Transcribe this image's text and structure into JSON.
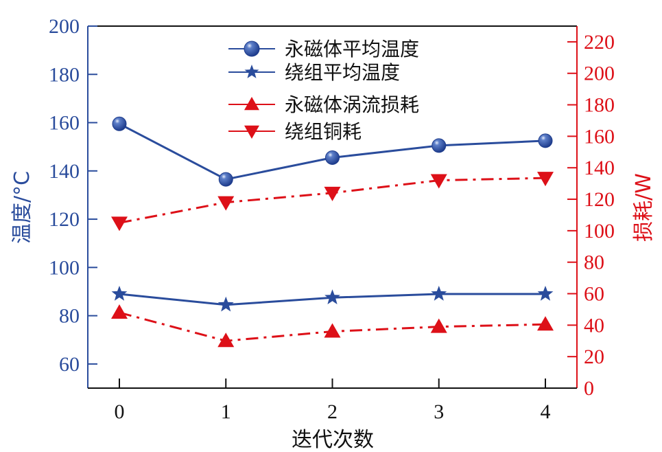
{
  "chart_data": {
    "type": "line",
    "title": "",
    "xlabel": "迭代次数",
    "ylabel": "温度/°C",
    "y2label": "损耗/W",
    "x": [
      0,
      1,
      2,
      3,
      4
    ],
    "x_ticks": [
      "0",
      "1",
      "2",
      "3",
      "4"
    ],
    "ylim": [
      50,
      200
    ],
    "y_ticks": [
      60,
      80,
      100,
      120,
      140,
      160,
      180,
      200
    ],
    "y2lim": [
      0,
      230
    ],
    "y2_ticks": [
      0,
      20,
      40,
      60,
      80,
      100,
      120,
      140,
      160,
      180,
      200,
      220
    ],
    "grid": false,
    "legend_position": "upper center",
    "series": [
      {
        "name": "永磁体平均温度",
        "axis": "left",
        "marker": "circle",
        "line": "solid",
        "color": "#2a4c9c",
        "values": [
          159.5,
          136.5,
          145.5,
          150.5,
          152.5
        ]
      },
      {
        "name": "绕组平均温度",
        "axis": "left",
        "marker": "star",
        "line": "solid",
        "color": "#2a4c9c",
        "values": [
          89,
          84.5,
          87.5,
          89,
          89
        ]
      },
      {
        "name": "永磁体涡流损耗",
        "axis": "right",
        "marker": "triangle-up",
        "line": "dash-dot",
        "color": "#dd1018",
        "values": [
          48,
          30,
          36,
          39,
          40.5
        ]
      },
      {
        "name": "绕组铜耗",
        "axis": "right",
        "marker": "triangle-down",
        "line": "dash-dot",
        "color": "#dd1018",
        "values": [
          105,
          118,
          124,
          132,
          133.5
        ]
      }
    ]
  },
  "colors": {
    "left_axis": "#2a4c9c",
    "right_axis": "#dd1018",
    "x_axis": "#111111"
  }
}
